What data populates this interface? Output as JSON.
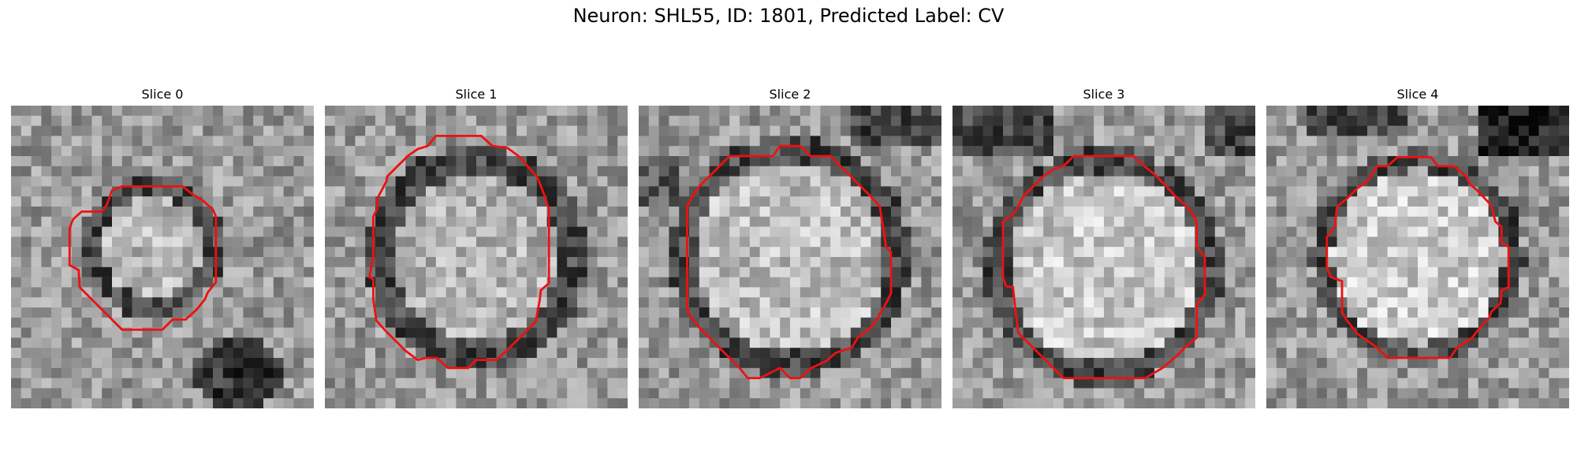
{
  "figure": {
    "title": "Neuron: SHL55, ID: 1801, Predicted Label: CV"
  },
  "colors": {
    "contour": "#ee1111",
    "background": "#ffffff"
  },
  "panels": [
    {
      "title": "Slice 0",
      "content": "grayscale microscopy patch with red contour outlining a small round cell"
    },
    {
      "title": "Slice 1",
      "content": "grayscale microscopy patch with red contour outlining a round cell"
    },
    {
      "title": "Slice 2",
      "content": "grayscale microscopy patch with red contour outlining a large round cell"
    },
    {
      "title": "Slice 3",
      "content": "grayscale microscopy patch with red contour outlining a large round cell"
    },
    {
      "title": "Slice 4",
      "content": "grayscale microscopy patch with red contour outlining a round cell"
    }
  ]
}
